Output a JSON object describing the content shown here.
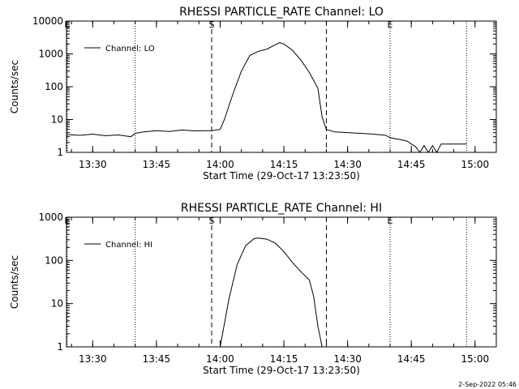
{
  "footer": {
    "timestamp": "2-Sep-2022 05:46"
  },
  "chart_data": [
    {
      "type": "line",
      "title": "RHESSI PARTICLE_RATE Channel: LO",
      "xlabel": "Start Time (29-Oct-17 13:23:50)",
      "ylabel": "Counts/sec",
      "y_scale": "log",
      "ylim": [
        1,
        10000
      ],
      "y_ticks": [
        1,
        10,
        100,
        1000,
        10000
      ],
      "y_tick_labels": [
        "1",
        "10",
        "100",
        "1000",
        "10000"
      ],
      "xlim": [
        "13:23:50",
        "15:05:00"
      ],
      "x_ticks": [
        "13:30",
        "13:45",
        "14:00",
        "14:15",
        "14:30",
        "14:45",
        "15:00"
      ],
      "x_tick_labels": [
        "13:30",
        "13:45",
        "14:00",
        "14:15",
        "14:30",
        "14:45",
        "15:00"
      ],
      "legend": {
        "position": "top-left",
        "entries": [
          "Channel: LO"
        ]
      },
      "markers": [
        {
          "label": "E",
          "time": "13:24",
          "style": "dotted"
        },
        {
          "label": "",
          "time": "13:40",
          "style": "dotted"
        },
        {
          "label": "S",
          "time": "13:58",
          "style": "dashed"
        },
        {
          "label": "",
          "time": "14:25",
          "style": "dashed"
        },
        {
          "label": "E",
          "time": "14:40",
          "style": "dotted"
        },
        {
          "label": "",
          "time": "14:58",
          "style": "dotted"
        }
      ],
      "series": [
        {
          "name": "Channel: LO",
          "x": [
            "13:24",
            "13:27",
            "13:30",
            "13:33",
            "13:36",
            "13:39",
            "13:40",
            "13:42",
            "13:45",
            "13:48",
            "13:51",
            "13:54",
            "13:57",
            "13:58",
            "14:00",
            "14:01",
            "14:03",
            "14:05",
            "14:07",
            "14:09",
            "14:11",
            "14:13",
            "14:14",
            "14:15",
            "14:17",
            "14:19",
            "14:21",
            "14:23",
            "14:24",
            "14:25",
            "14:27",
            "14:30",
            "14:33",
            "14:36",
            "14:39",
            "14:40",
            "14:42",
            "14:44",
            "14:45",
            "14:46",
            "14:47",
            "14:48",
            "14:49",
            "14:50",
            "14:51",
            "14:52",
            "14:55",
            "14:58"
          ],
          "y": [
            3.5,
            3.3,
            3.6,
            3.2,
            3.4,
            3.0,
            3.8,
            4.2,
            4.6,
            4.3,
            4.8,
            4.5,
            4.6,
            4.6,
            5.0,
            10,
            60,
            300,
            900,
            1200,
            1400,
            1900,
            2200,
            2000,
            1300,
            650,
            270,
            90,
            12,
            5.0,
            4.2,
            4.0,
            3.8,
            3.6,
            3.3,
            2.8,
            2.5,
            2.2,
            1.8,
            1.5,
            1.0,
            1.6,
            1.0,
            1.6,
            1.0,
            1.8,
            1.8,
            1.8
          ]
        }
      ]
    },
    {
      "type": "line",
      "title": "RHESSI PARTICLE_RATE Channel: HI",
      "xlabel": "Start Time (29-Oct-17 13:23:50)",
      "ylabel": "Counts/sec",
      "y_scale": "log",
      "ylim": [
        1,
        1000
      ],
      "y_ticks": [
        1,
        10,
        100,
        1000
      ],
      "y_tick_labels": [
        "1",
        "10",
        "100",
        "1000"
      ],
      "xlim": [
        "13:23:50",
        "15:05:00"
      ],
      "x_ticks": [
        "13:30",
        "13:45",
        "14:00",
        "14:15",
        "14:30",
        "14:45",
        "15:00"
      ],
      "x_tick_labels": [
        "13:30",
        "13:45",
        "14:00",
        "14:15",
        "14:30",
        "14:45",
        "15:00"
      ],
      "legend": {
        "position": "top-left",
        "entries": [
          "Channel: HI"
        ]
      },
      "markers": [
        {
          "label": "E",
          "time": "13:24",
          "style": "dotted"
        },
        {
          "label": "",
          "time": "13:40",
          "style": "dotted"
        },
        {
          "label": "S",
          "time": "13:58",
          "style": "dashed"
        },
        {
          "label": "",
          "time": "14:25",
          "style": "dashed"
        },
        {
          "label": "E",
          "time": "14:40",
          "style": "dotted"
        },
        {
          "label": "",
          "time": "14:58",
          "style": "dotted"
        }
      ],
      "series": [
        {
          "name": "Channel: HI",
          "x": [
            "14:00",
            "14:02",
            "14:04",
            "14:06",
            "14:08",
            "14:09",
            "14:11",
            "14:13",
            "14:15",
            "14:17",
            "14:19",
            "14:21",
            "14:22",
            "14:23",
            "14:24"
          ],
          "y": [
            1.0,
            12,
            80,
            220,
            320,
            330,
            310,
            250,
            160,
            90,
            55,
            35,
            15,
            3,
            1.0
          ]
        }
      ]
    }
  ]
}
